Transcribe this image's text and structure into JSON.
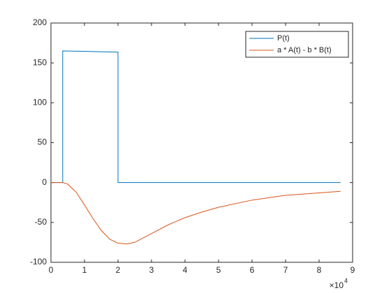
{
  "chart_data": {
    "type": "line",
    "xlim": [
      0,
      90000
    ],
    "ylim": [
      -100,
      200
    ],
    "xticks": [
      {
        "value": 0,
        "label": "0"
      },
      {
        "value": 10000,
        "label": "1"
      },
      {
        "value": 20000,
        "label": "2"
      },
      {
        "value": 30000,
        "label": "3"
      },
      {
        "value": 40000,
        "label": "4"
      },
      {
        "value": 50000,
        "label": "5"
      },
      {
        "value": 60000,
        "label": "6"
      },
      {
        "value": 70000,
        "label": "7"
      },
      {
        "value": 80000,
        "label": "8"
      },
      {
        "value": 90000,
        "label": "9"
      }
    ],
    "yticks": [
      -100,
      -50,
      0,
      50,
      100,
      150,
      200
    ],
    "x_multiplier": {
      "base": "×10",
      "exponent": "4"
    },
    "legend": "upper-right",
    "series": [
      {
        "name": "P(t)",
        "color": "#0072bd",
        "x": [
          0,
          3500,
          3500,
          10000,
          20000,
          20000,
          86400
        ],
        "values": [
          0,
          0,
          165,
          164.5,
          163.5,
          0,
          0
        ]
      },
      {
        "name": "a * A(t) - b * B(t)",
        "color": "#d95319",
        "x": [
          0,
          3500,
          5000,
          7500,
          10000,
          12500,
          15000,
          17500,
          20000,
          22500,
          25000,
          30000,
          35000,
          40000,
          45000,
          50000,
          60000,
          70000,
          80000,
          86400
        ],
        "values": [
          0,
          0,
          -2,
          -12,
          -28,
          -45,
          -60,
          -71,
          -76,
          -77,
          -75,
          -64,
          -53,
          -44,
          -37,
          -31,
          -22,
          -16,
          -13,
          -11
        ]
      }
    ]
  }
}
